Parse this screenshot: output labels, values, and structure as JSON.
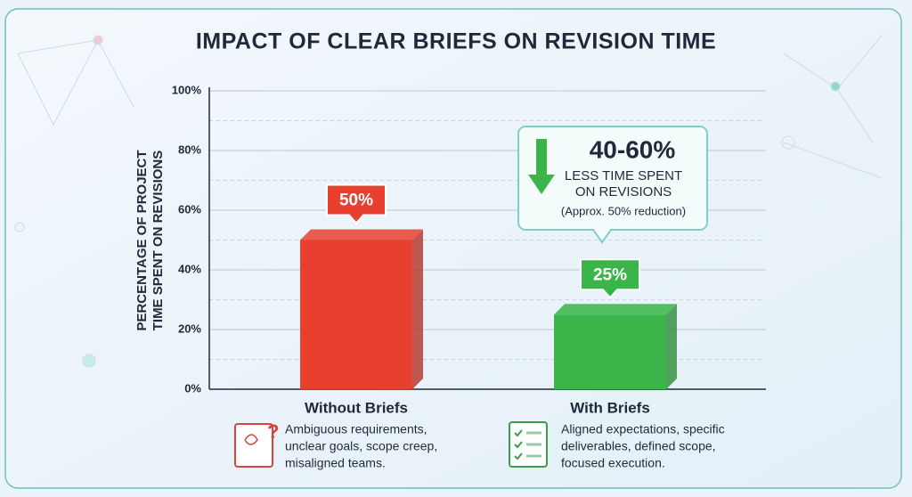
{
  "chart_data": {
    "type": "bar",
    "title": "IMPACT OF CLEAR BRIEFS ON REVISION TIME",
    "y_label": [
      "PERCENTAGE OF PROJECT",
      "TIME SPENT ON REVISIONS"
    ],
    "categories": [
      "Without Briefs",
      "With Briefs"
    ],
    "values": [
      50,
      25
    ],
    "value_labels": [
      "50%",
      "25%"
    ],
    "colors": [
      "#e8402e",
      "#3bb54a"
    ],
    "descriptions": [
      [
        "Ambiguous requirements,",
        "unclear goals, scope creep,",
        "misaligned teams."
      ],
      [
        "Aligned expectations, specific",
        "deliverables, defined scope,",
        "focused execution."
      ]
    ],
    "ylim": [
      0,
      100
    ],
    "yticks": [
      {
        "value": 0,
        "label": "0%"
      },
      {
        "value": 20,
        "label": "20%"
      },
      {
        "value": 40,
        "label": "40%"
      },
      {
        "value": 60,
        "label": "60%"
      },
      {
        "value": 80,
        "label": "80%"
      },
      {
        "value": 100,
        "label": "100%"
      }
    ],
    "minor_yticks": [
      10,
      30,
      50,
      70,
      90
    ],
    "grid": true,
    "annotation": {
      "headline": "40-60%",
      "lines": [
        "LESS TIME SPENT",
        "ON REVISIONS"
      ],
      "note": "(Approx. 50% reduction)"
    }
  }
}
